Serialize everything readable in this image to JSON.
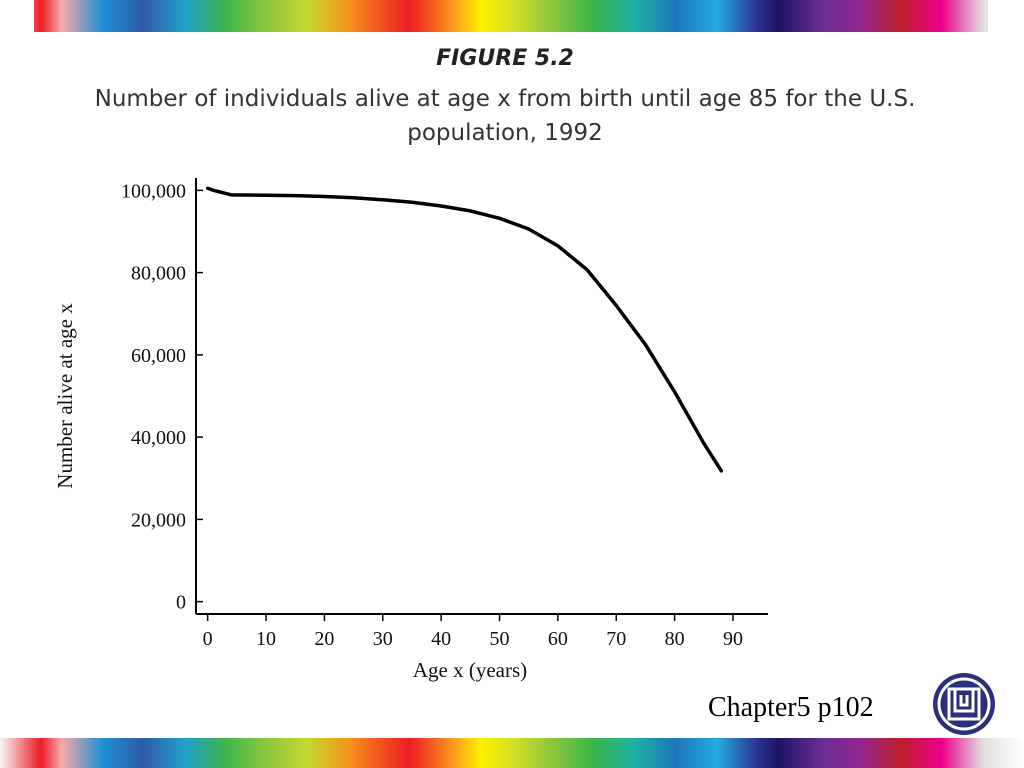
{
  "slide": {
    "figure_label": "FIGURE 5.2",
    "caption": "Number of individuals alive at age x from birth until age 85 for the U.S. population, 1992",
    "footer": "Chapter5 p102"
  },
  "colors": {
    "line": "#000000",
    "text": "#111111"
  },
  "chart_data": {
    "type": "line",
    "xlabel": "Age x (years)",
    "ylabel": "Number alive at age x",
    "xlim": [
      -2,
      96
    ],
    "ylim": [
      -3000,
      103000
    ],
    "x_ticks": [
      0,
      10,
      20,
      30,
      40,
      50,
      60,
      70,
      80,
      90
    ],
    "x_tick_labels": [
      "0",
      "10",
      "20",
      "30",
      "40",
      "50",
      "60",
      "70",
      "80",
      "90"
    ],
    "y_ticks": [
      0,
      20000,
      40000,
      60000,
      80000,
      100000
    ],
    "y_tick_labels": [
      "0",
      "20,000",
      "40,000",
      "60,000",
      "80,000",
      "100,000"
    ],
    "grid": false,
    "series": [
      {
        "x": [
          0,
          1,
          4,
          10,
          15,
          20,
          25,
          30,
          35,
          40,
          45,
          50,
          55,
          60,
          65,
          70,
          75,
          80,
          85,
          88
        ],
        "y": [
          100500,
          100000,
          98900,
          98800,
          98700,
          98500,
          98200,
          97700,
          97100,
          96200,
          95000,
          93200,
          90600,
          86500,
          80700,
          72000,
          62500,
          51000,
          38500,
          31800
        ]
      }
    ]
  }
}
